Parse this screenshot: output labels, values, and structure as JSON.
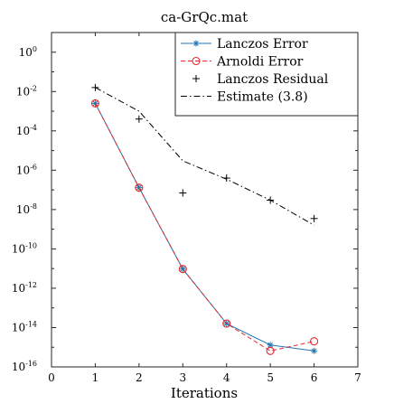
{
  "chart_data": {
    "type": "line",
    "title": "ca-GrQc.mat",
    "xlabel": "Iterations",
    "ylabel": "",
    "xlim": [
      0,
      7
    ],
    "ylim_log10": [
      -16,
      1
    ],
    "y_scale": "log",
    "grid": false,
    "legend_position": "top-right",
    "x_ticks": [
      "0",
      "1",
      "2",
      "3",
      "4",
      "5",
      "6",
      "7"
    ],
    "y_ticks": [
      {
        "base": "10",
        "exp": "0",
        "log10": 0
      },
      {
        "base": "10",
        "exp": "-2",
        "log10": -2
      },
      {
        "base": "10",
        "exp": "-4",
        "log10": -4
      },
      {
        "base": "10",
        "exp": "-6",
        "log10": -6
      },
      {
        "base": "10",
        "exp": "-8",
        "log10": -8
      },
      {
        "base": "10",
        "exp": "-10",
        "log10": -10
      },
      {
        "base": "10",
        "exp": "-12",
        "log10": -12
      },
      {
        "base": "10",
        "exp": "-14",
        "log10": -14
      },
      {
        "base": "10",
        "exp": "-16",
        "log10": -16
      }
    ],
    "series": [
      {
        "name": "Lanczos Error",
        "color": "#1f77b4",
        "line": "solid",
        "marker": "asterisk",
        "x": [
          1,
          2,
          3,
          4,
          5,
          6
        ],
        "y": [
          0.0025,
          1.3e-07,
          9.5e-12,
          1.6e-14,
          1.3e-15,
          6.5e-16
        ]
      },
      {
        "name": "Arnoldi Error",
        "color": "#e8262a",
        "line": "dashed",
        "marker": "circle",
        "x": [
          1,
          2,
          3,
          4,
          5,
          6
        ],
        "y": [
          0.0025,
          1.3e-07,
          9.5e-12,
          1.6e-14,
          6.5e-16,
          2e-15
        ]
      },
      {
        "name": "Lanczos Residual",
        "color": "#000000",
        "line": "none",
        "marker": "plus",
        "x": [
          1,
          2,
          3,
          4,
          5,
          6
        ],
        "y": [
          0.016,
          0.0004,
          7e-08,
          4e-07,
          3e-08,
          3.5e-09
        ]
      },
      {
        "name": "Estimate (3.8)",
        "color": "#000000",
        "line": "dashdot",
        "marker": "none",
        "x": [
          1,
          2,
          3,
          4,
          5,
          6
        ],
        "y": [
          0.016,
          0.001,
          3e-06,
          3.5e-07,
          3e-08,
          1.6e-09
        ]
      }
    ]
  }
}
